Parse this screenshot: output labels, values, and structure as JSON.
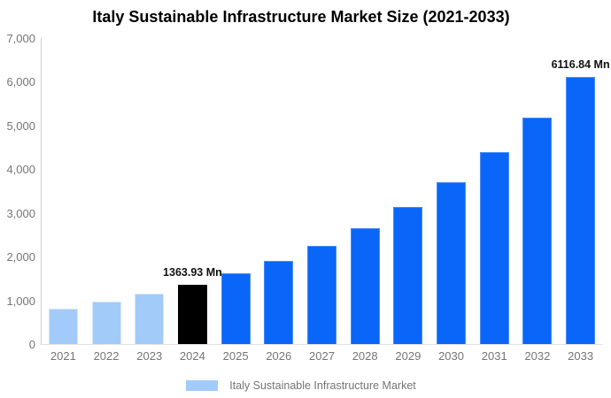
{
  "title": "Italy Sustainable Infrastructure Market Size (2021-2033)",
  "legend": {
    "label": "Italy Sustainable Infrastructure Market",
    "swatch_color": "#a2cbfa"
  },
  "colors": {
    "historical_bar": "#a2cbfa",
    "base_year_bar": "#000000",
    "forecast_bar": "#0a66f9",
    "title_text": "#000000",
    "axis_text": "#757575",
    "axis_line": "#cccccc",
    "annotation_text": "#111111"
  },
  "chart_data": {
    "type": "bar",
    "title": "Italy Sustainable Infrastructure Market Size (2021-2033)",
    "xlabel": "",
    "ylabel": "",
    "unit": "Mn",
    "categories": [
      "2021",
      "2022",
      "2023",
      "2024",
      "2025",
      "2026",
      "2027",
      "2028",
      "2029",
      "2030",
      "2031",
      "2032",
      "2033"
    ],
    "series": [
      {
        "name": "Italy Sustainable Infrastructure Market",
        "values": [
          810,
          975,
          1160,
          1363.93,
          1610,
          1900,
          2250,
          2655,
          3140,
          3710,
          4385,
          5180,
          6116.84
        ]
      }
    ],
    "bar_roles": [
      "historical",
      "historical",
      "historical",
      "base",
      "forecast",
      "forecast",
      "forecast",
      "forecast",
      "forecast",
      "forecast",
      "forecast",
      "forecast",
      "forecast"
    ],
    "annotations": [
      {
        "category": "2024",
        "text": "1363.93 Mn"
      },
      {
        "category": "2033",
        "text": "6116.84 Mn"
      }
    ],
    "ylim": [
      0,
      7000
    ],
    "ytick_values": [
      0,
      1000,
      2000,
      3000,
      4000,
      5000,
      6000,
      7000
    ],
    "ytick_labels": [
      "0",
      "1,000",
      "2,000",
      "3,000",
      "4,000",
      "5,000",
      "6,000",
      "7,000"
    ],
    "grid": false,
    "legend_position": "bottom"
  }
}
